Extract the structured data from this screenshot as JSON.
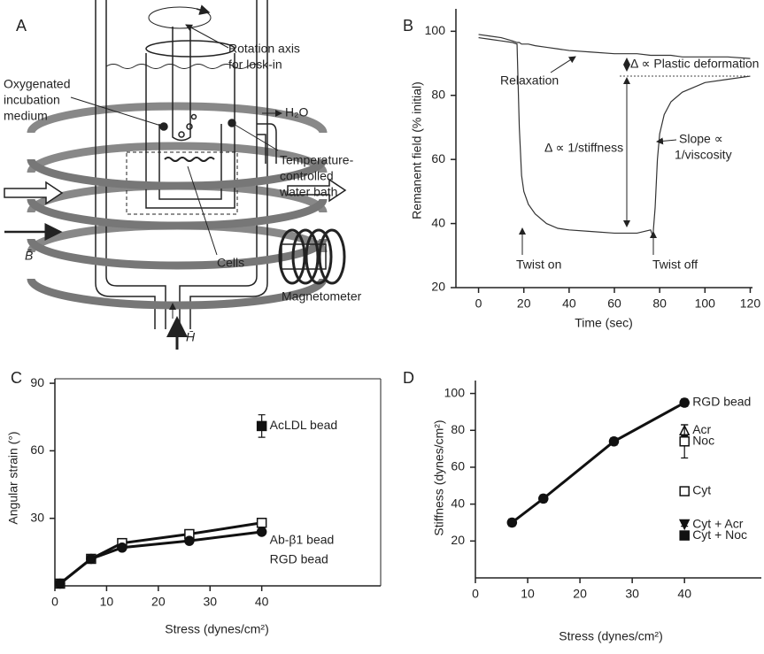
{
  "diagram": {
    "panel": "A",
    "rotation": [
      "Rotation axis",
      "for lock-in"
    ],
    "medium": [
      "Oxygenated",
      "incubation",
      "medium"
    ],
    "water": "H₂O",
    "bath": [
      "Temperature-",
      "controlled",
      "water bath"
    ],
    "b_field": "B̄",
    "cells": "Cells",
    "magnetometer": "Magnetometer",
    "h_field": "H̄"
  },
  "chart_data": [
    {
      "type": "line",
      "panel": "B",
      "y_label": "Remanent field (% initial)",
      "x_label": "Time (sec)",
      "x": [
        0,
        5,
        10,
        15,
        17,
        18,
        19,
        20,
        22,
        25,
        30,
        35,
        40,
        50,
        60,
        70,
        76,
        77,
        78,
        79,
        80,
        82,
        85,
        90,
        100,
        110,
        120
      ],
      "series": [
        {
          "color": "#333333",
          "values": [
            99,
            98.5,
            98,
            97,
            96.5,
            96.5,
            96,
            96,
            96,
            95.5,
            95,
            94.5,
            94,
            93.5,
            93,
            93,
            92.5,
            92.5,
            92.5,
            92.5,
            92.5,
            92.5,
            92.5,
            92,
            92,
            92,
            91.5
          ]
        },
        {
          "color": "#333333",
          "values": [
            98,
            97.5,
            97,
            96.5,
            96,
            70,
            55,
            50,
            46,
            43,
            40,
            38.5,
            38,
            37.5,
            37,
            37,
            38,
            36,
            45,
            60,
            68,
            74,
            78,
            81,
            84,
            85,
            86
          ]
        }
      ],
      "xlim": [
        -10,
        121
      ],
      "ylim": [
        20,
        107
      ],
      "xticks": [
        0,
        20,
        40,
        60,
        80,
        100,
        120
      ],
      "yticks": [
        20,
        40,
        60,
        80,
        100
      ],
      "annotations": [
        "Relaxation",
        "Δ ∝ Plastic deformation",
        "Δ ∝ 1/stiffness",
        "Slope ∝",
        "1/viscosity",
        "Twist on",
        "Twist off"
      ]
    },
    {
      "type": "line",
      "panel": "C",
      "y_label": "Angular strain (°)",
      "x_label": "Stress (dynes/cm²)",
      "box": true,
      "series": [
        {
          "name": "AcLDL bead",
          "marker": "square",
          "color": "#111111",
          "x": [
            40
          ],
          "values": [
            71
          ],
          "errors": [
            5
          ]
        },
        {
          "name": "Ab-β1 bead",
          "marker": "open-square",
          "color": "#111111",
          "x": [
            1,
            7,
            13,
            26,
            40
          ],
          "values": [
            1,
            12,
            19,
            23,
            28
          ],
          "errors": [
            0.5,
            1,
            1,
            1,
            2
          ]
        },
        {
          "name": "RGD bead",
          "marker": "circle",
          "color": "#111111",
          "x": [
            1,
            7,
            13,
            26,
            40
          ],
          "values": [
            1,
            12,
            17,
            20,
            24
          ],
          "errors": [
            0.5,
            1,
            1,
            1,
            1
          ]
        }
      ],
      "xlim": [
        0,
        63
      ],
      "ylim": [
        0,
        92
      ],
      "xticks": [
        0,
        10,
        20,
        30,
        40
      ],
      "yticks": [
        30,
        60,
        90
      ]
    },
    {
      "type": "line",
      "panel": "D",
      "y_label": "Stiffness (dynes/cm²)",
      "x_label": "Stress (dynes/cm²)",
      "series": [
        {
          "name": "RGD bead",
          "marker": "circle",
          "color": "#111111",
          "x": [
            7,
            13,
            26.5,
            40
          ],
          "values": [
            30,
            43,
            74,
            95
          ],
          "errors": [
            2,
            2,
            2,
            2
          ]
        },
        {
          "name": "Acr",
          "marker": "open-triangle",
          "color": "#111111",
          "x": [
            40
          ],
          "values": [
            80
          ],
          "errors": [
            3
          ]
        },
        {
          "name": "Noc",
          "marker": "open-square",
          "color": "#111111",
          "x": [
            40
          ],
          "values": [
            74
          ],
          "errors": [
            9
          ]
        },
        {
          "name": "Cyt",
          "marker": "open-square",
          "color": "#111111",
          "x": [
            40
          ],
          "values": [
            47
          ],
          "errors": [
            1
          ]
        },
        {
          "name": "Cyt + Acr",
          "marker": "down-triangle",
          "color": "#111111",
          "x": [
            40
          ],
          "values": [
            29
          ],
          "errors": [
            1
          ]
        },
        {
          "name": "Cyt + Noc",
          "marker": "square",
          "color": "#111111",
          "x": [
            40
          ],
          "values": [
            23
          ],
          "errors": [
            1
          ]
        }
      ],
      "xlim": [
        0,
        54.7
      ],
      "ylim": [
        0,
        107
      ],
      "xticks": [
        0,
        10,
        20,
        30,
        40
      ],
      "yticks": [
        20,
        40,
        60,
        80,
        100
      ]
    }
  ]
}
